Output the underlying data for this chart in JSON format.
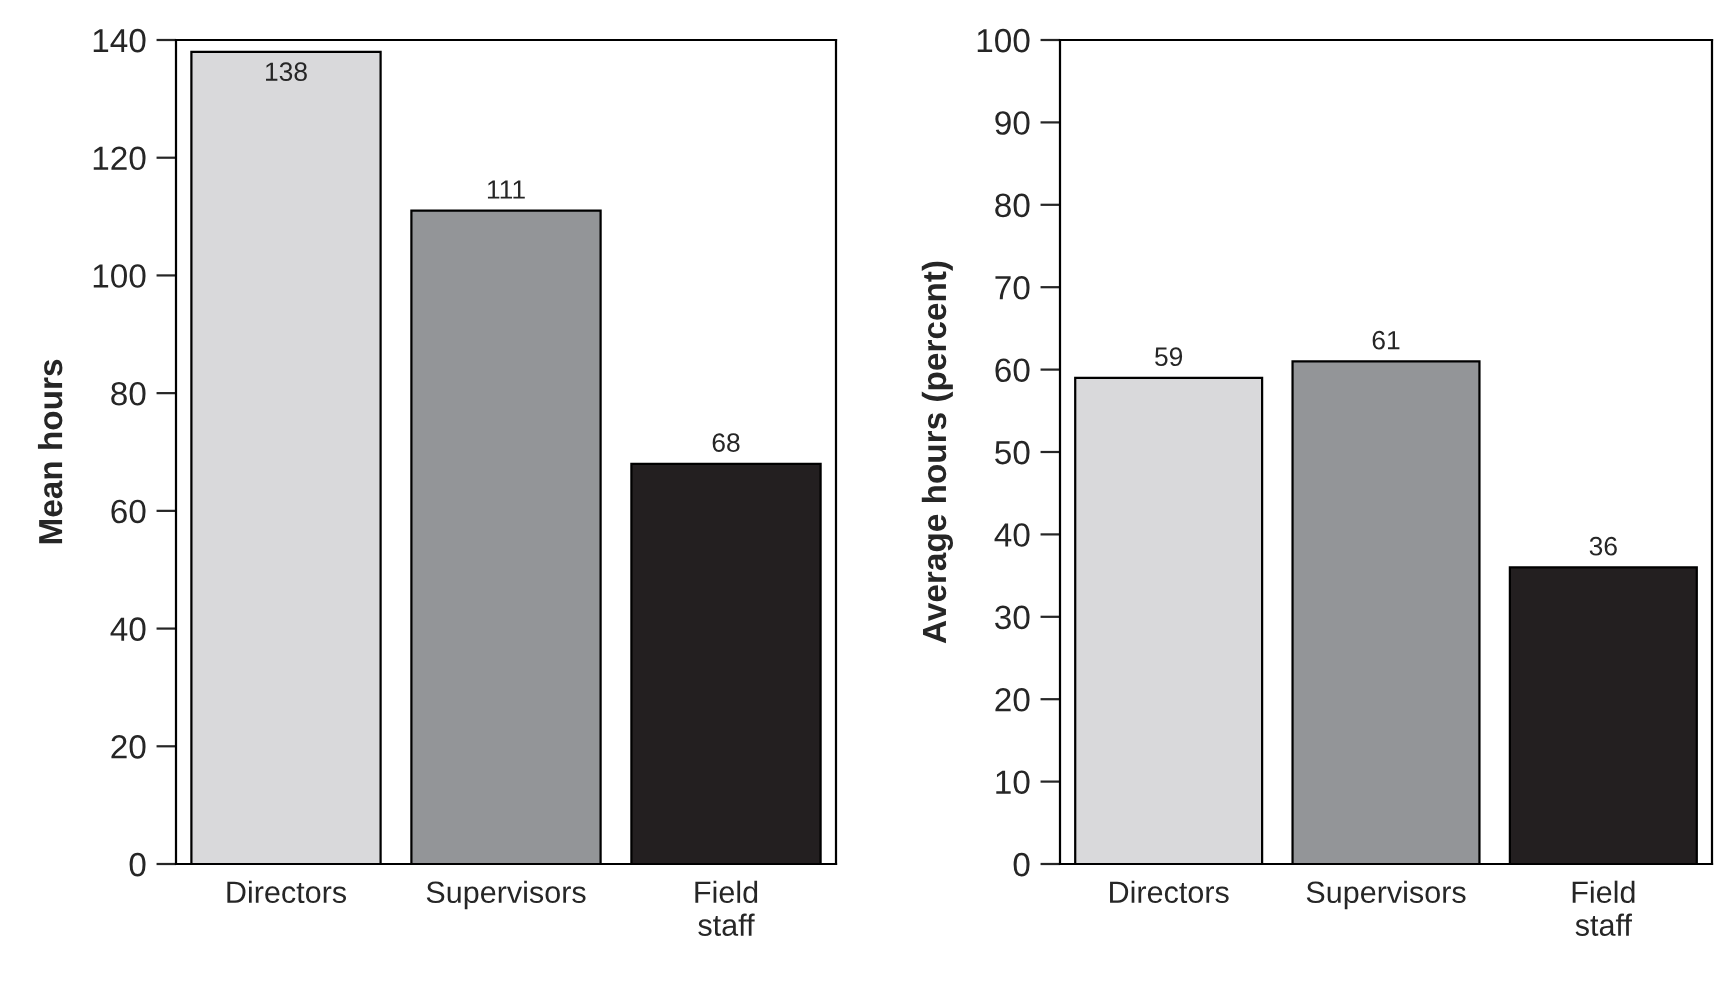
{
  "chart_data": [
    {
      "type": "bar",
      "ylabel": "Mean hours",
      "categories": [
        "Directors",
        "Supervisors",
        "Field\nstaff"
      ],
      "values": [
        138,
        111,
        68
      ],
      "colors": [
        "#d9d9db",
        "#939598",
        "#231f20"
      ],
      "ylim": [
        0,
        140
      ],
      "yticks": [
        0,
        20,
        40,
        60,
        80,
        100,
        120,
        140
      ],
      "data_labels": true,
      "grid": false,
      "legend": false
    },
    {
      "type": "bar",
      "ylabel": "Average hours (percent)",
      "categories": [
        "Directors",
        "Supervisors",
        "Field\nstaff"
      ],
      "values": [
        59,
        61,
        36
      ],
      "colors": [
        "#d9d9db",
        "#939598",
        "#231f20"
      ],
      "ylim": [
        0,
        100
      ],
      "yticks": [
        0,
        10,
        20,
        30,
        40,
        50,
        60,
        70,
        80,
        90,
        100
      ],
      "data_labels": true,
      "grid": false,
      "legend": false
    }
  ]
}
